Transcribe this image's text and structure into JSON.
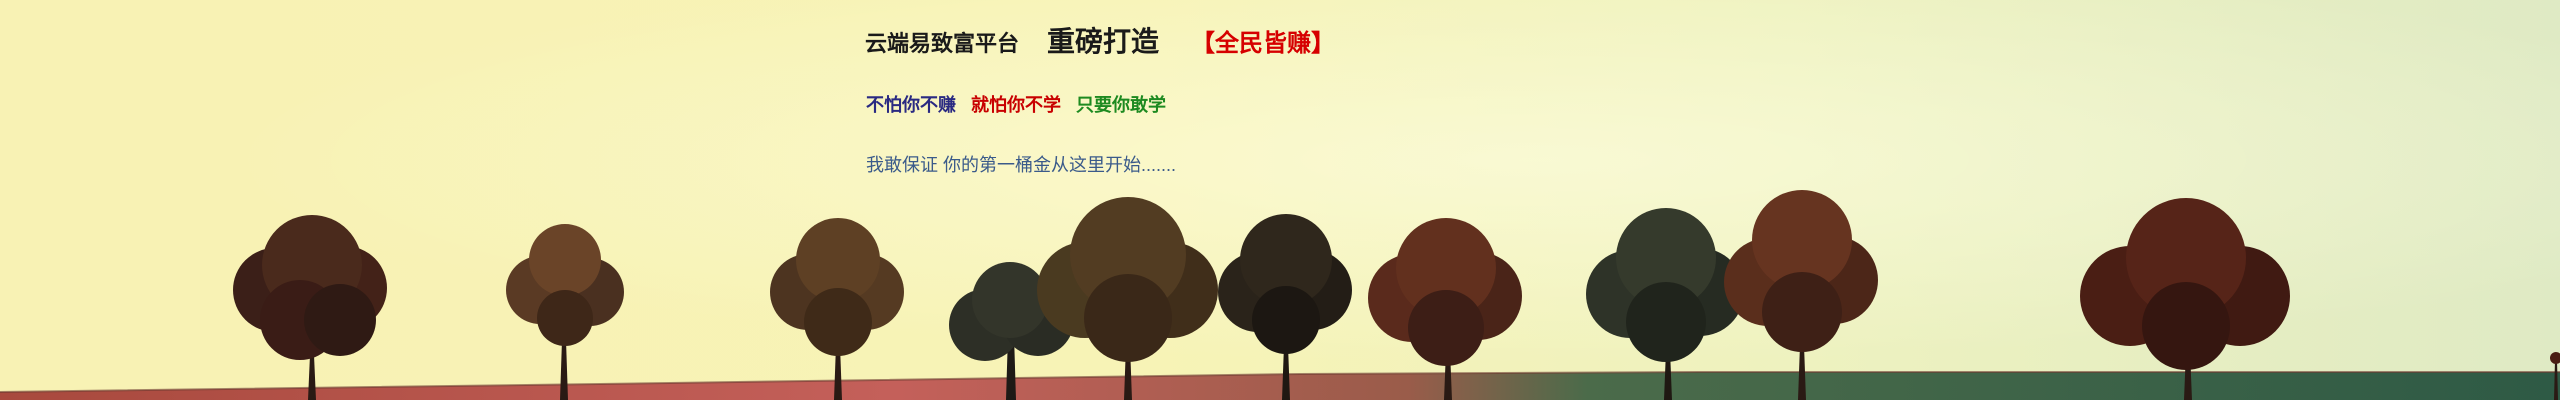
{
  "banner": {
    "headline": {
      "platform": "云端易致富平台",
      "launch": "重磅打造",
      "badge": "【全民皆赚】"
    },
    "slogan": {
      "part1": "不怕你不赚",
      "part2": "就怕你不学",
      "part3": "只要你敢学"
    },
    "promise": "我敢保证  你的第一桶金从这里开始......."
  },
  "colors": {
    "sky": "#f7f3b6",
    "field_red": "#b04a3e",
    "field_green": "#3f6a4c",
    "headline_red": "#d60000",
    "slogan_blue": "#2a2a82",
    "slogan_red": "#c80000",
    "slogan_green": "#1d8a20",
    "promise_blue": "#3a5a8a"
  }
}
